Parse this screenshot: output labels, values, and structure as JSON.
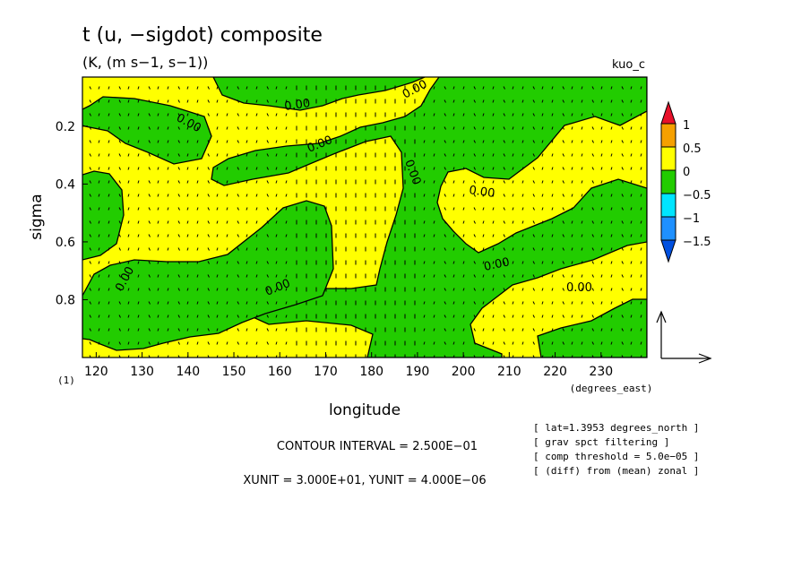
{
  "title": "t (u, −sigdot) composite",
  "subtitle": "(K, (m s−1, s−1))",
  "dataset": "kuo_c",
  "chart_data": {
    "type": "contour",
    "xlabel": "longitude",
    "xunit_label": "(degrees_east)",
    "ylabel": "sigma",
    "corner_label": "(1)",
    "xlim": [
      117,
      240
    ],
    "ylim": [
      1.0,
      0.03
    ],
    "x_ticks": [
      120,
      130,
      140,
      150,
      160,
      170,
      180,
      190,
      200,
      210,
      220,
      230
    ],
    "y_ticks": [
      0.2,
      0.4,
      0.6,
      0.8
    ],
    "y_tick_labels": [
      "0.2",
      "0.4",
      "0.6",
      "0.8"
    ],
    "contour_label": "0.00",
    "contour_interval": 0.25,
    "colorbar": {
      "levels": [
        -1.5,
        -1,
        -0.5,
        0,
        0.5,
        1
      ],
      "labels": [
        "1",
        "0.5",
        "0",
        "−0.5",
        "−1",
        "−1.5"
      ],
      "colors": [
        "#e8102a",
        "#f5a000",
        "#ffff00",
        "#22cc00",
        "#00e5ff",
        "#1e90ff",
        "#0050e0"
      ]
    },
    "fill_colors": {
      "positive": "#ffff00",
      "negative": "#22cc00"
    },
    "vector_field": "u, -sigdot (small arrows over whole domain)",
    "grid": false
  },
  "footer": {
    "contour_interval_text": "CONTOUR INTERVAL = 2.500E−01",
    "units_text": "XUNIT = 3.000E+01, YUNIT = 4.000E−06"
  },
  "info_lines": [
    "[ lat=1.3953 degrees_north ]",
    "[ grav spct filtering ]",
    "[ comp threshold = 5.0e−05 ]",
    "[ (diff) from (mean) zonal ]"
  ]
}
